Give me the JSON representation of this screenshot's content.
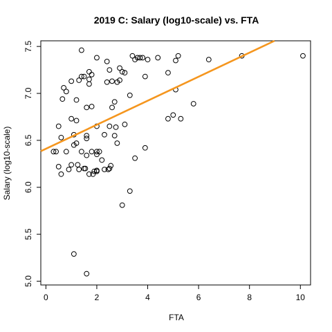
{
  "chart_data": {
    "type": "scatter",
    "title": "2019 C: Salary (log10-scale) vs. FTA",
    "xlabel": "FTA",
    "ylabel": "Salary (log10-scale)",
    "xlim": [
      -0.2,
      10.4
    ],
    "ylim": [
      4.96,
      7.56
    ],
    "xticks": [
      0,
      2,
      4,
      6,
      8,
      10
    ],
    "yticks": [
      5.0,
      5.5,
      6.0,
      6.5,
      7.0,
      7.5
    ],
    "xtick_labels": [
      "0",
      "2",
      "4",
      "6",
      "8",
      "10"
    ],
    "ytick_labels": [
      "5.0",
      "5.5",
      "6.0",
      "6.5",
      "7.0",
      "7.5"
    ],
    "grid": false,
    "legend": "none",
    "fit_line": {
      "intercept": 6.41,
      "slope": 0.128,
      "color": "#F5961E"
    },
    "points": [
      [
        0.3,
        6.38
      ],
      [
        0.4,
        6.38
      ],
      [
        0.5,
        6.65
      ],
      [
        0.5,
        6.22
      ],
      [
        0.6,
        6.53
      ],
      [
        0.6,
        6.14
      ],
      [
        0.65,
        6.94
      ],
      [
        0.7,
        7.06
      ],
      [
        0.8,
        7.02
      ],
      [
        0.8,
        6.38
      ],
      [
        0.9,
        6.19
      ],
      [
        1.0,
        7.13
      ],
      [
        1.0,
        6.73
      ],
      [
        1.0,
        6.24
      ],
      [
        1.1,
        6.56
      ],
      [
        1.1,
        6.45
      ],
      [
        1.1,
        5.29
      ],
      [
        1.2,
        6.93
      ],
      [
        1.2,
        6.71
      ],
      [
        1.2,
        6.47
      ],
      [
        1.25,
        6.24
      ],
      [
        1.3,
        7.14
      ],
      [
        1.3,
        6.19
      ],
      [
        1.4,
        7.46
      ],
      [
        1.4,
        7.18
      ],
      [
        1.4,
        6.38
      ],
      [
        1.5,
        7.18
      ],
      [
        1.5,
        6.2
      ],
      [
        1.55,
        6.2
      ],
      [
        1.6,
        6.85
      ],
      [
        1.6,
        6.55
      ],
      [
        1.6,
        6.52
      ],
      [
        1.6,
        6.34
      ],
      [
        1.6,
        5.08
      ],
      [
        1.7,
        7.23
      ],
      [
        1.7,
        7.15
      ],
      [
        1.7,
        7.1
      ],
      [
        1.7,
        6.14
      ],
      [
        1.8,
        7.2
      ],
      [
        1.8,
        6.86
      ],
      [
        1.8,
        6.38
      ],
      [
        1.85,
        6.14
      ],
      [
        1.9,
        6.17
      ],
      [
        2.0,
        7.38
      ],
      [
        2.0,
        6.65
      ],
      [
        2.0,
        6.38
      ],
      [
        2.0,
        6.35
      ],
      [
        2.0,
        6.18
      ],
      [
        2.0,
        6.17
      ],
      [
        2.1,
        6.38
      ],
      [
        2.2,
        6.29
      ],
      [
        2.3,
        6.56
      ],
      [
        2.3,
        6.19
      ],
      [
        2.4,
        7.34
      ],
      [
        2.4,
        7.12
      ],
      [
        2.45,
        6.19
      ],
      [
        2.5,
        7.25
      ],
      [
        2.5,
        6.65
      ],
      [
        2.5,
        6.2
      ],
      [
        2.55,
        6.23
      ],
      [
        2.6,
        7.13
      ],
      [
        2.6,
        6.85
      ],
      [
        2.7,
        6.91
      ],
      [
        2.7,
        6.55
      ],
      [
        2.75,
        6.64
      ],
      [
        2.8,
        7.12
      ],
      [
        2.8,
        6.47
      ],
      [
        2.9,
        7.27
      ],
      [
        2.9,
        7.14
      ],
      [
        3.0,
        7.23
      ],
      [
        3.0,
        5.81
      ],
      [
        3.1,
        7.22
      ],
      [
        3.1,
        6.67
      ],
      [
        3.3,
        6.98
      ],
      [
        3.3,
        5.96
      ],
      [
        3.4,
        7.4
      ],
      [
        3.5,
        7.36
      ],
      [
        3.5,
        6.31
      ],
      [
        3.6,
        7.38
      ],
      [
        3.7,
        7.38
      ],
      [
        3.8,
        7.38
      ],
      [
        3.9,
        7.18
      ],
      [
        3.9,
        6.42
      ],
      [
        4.0,
        7.36
      ],
      [
        4.4,
        7.38
      ],
      [
        4.8,
        7.22
      ],
      [
        4.8,
        6.73
      ],
      [
        5.0,
        6.77
      ],
      [
        5.1,
        7.35
      ],
      [
        5.1,
        7.04
      ],
      [
        5.2,
        7.4
      ],
      [
        5.3,
        6.73
      ],
      [
        5.8,
        6.89
      ],
      [
        6.4,
        7.36
      ],
      [
        7.7,
        7.4
      ],
      [
        10.1,
        7.4
      ]
    ]
  }
}
